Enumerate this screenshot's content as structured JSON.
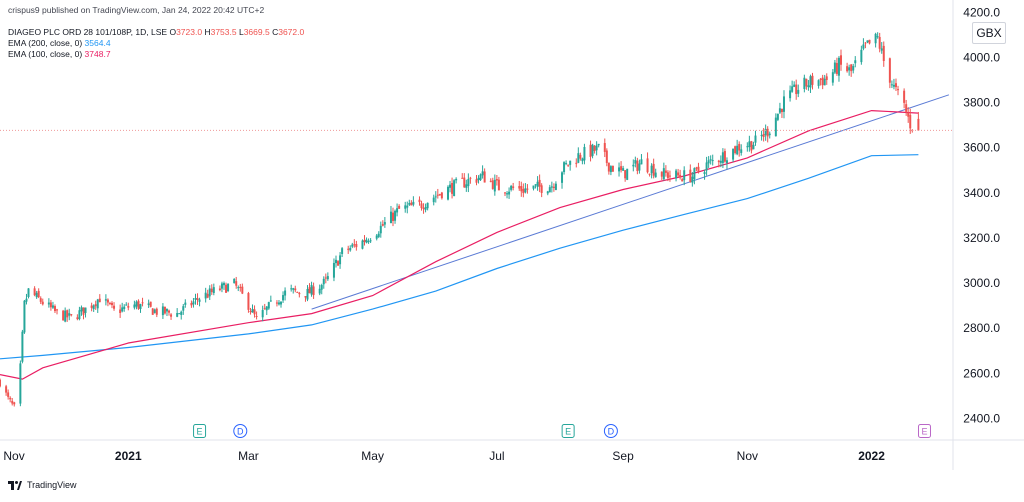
{
  "header": {
    "published": "crispus9 published on TradingView.com, Jan 24, 2022 20:42 UTC+2",
    "symbol": "DIAGEO PLC ORD 28 101/108P, 1D, LSE",
    "open_label": "O",
    "open": "3723.0",
    "high_label": "H",
    "high": "3753.5",
    "low_label": "L",
    "low": "3669.5",
    "close_label": "C",
    "close": "3672.0",
    "ema200_label": "EMA (200, close, 0)",
    "ema200_value": "3564.4",
    "ema100_label": "EMA (100, close, 0)",
    "ema100_value": "3748.7"
  },
  "currency": "GBX",
  "footer": {
    "brand": "TradingView"
  },
  "colors": {
    "up": "#26a69a",
    "down": "#ef5350",
    "ema200": "#2196f3",
    "ema100": "#e91e63",
    "trendline": "#5b7bd5",
    "last_price_line": "#ef9a9a"
  },
  "chart_data": {
    "type": "candlestick",
    "ylim": [
      2300,
      4250
    ],
    "y_ticks": [
      "2400.0",
      "2600.0",
      "2800.0",
      "3000.0",
      "3200.0",
      "3400.0",
      "3600.0",
      "3800.0",
      "4000.0",
      "4200.0"
    ],
    "x_ticks": [
      {
        "label": "Nov",
        "date": "2020-11-01"
      },
      {
        "label": "2021",
        "date": "2021-01-01",
        "bold": true
      },
      {
        "label": "Mar",
        "date": "2021-03-01"
      },
      {
        "label": "May",
        "date": "2021-05-01"
      },
      {
        "label": "Jul",
        "date": "2021-07-01"
      },
      {
        "label": "Sep",
        "date": "2021-09-01"
      },
      {
        "label": "Nov",
        "date": "2021-11-01"
      },
      {
        "label": "2022",
        "date": "2022-01-01",
        "bold": true
      }
    ],
    "xlim": [
      "2020-10-30",
      "2022-02-10"
    ],
    "price_anchors": [
      [
        "2020-10-30",
        2560
      ],
      [
        "2020-11-03",
        2480
      ],
      [
        "2020-11-06",
        2440
      ],
      [
        "2020-11-09",
        2620
      ],
      [
        "2020-11-11",
        2900
      ],
      [
        "2020-11-13",
        2960
      ],
      [
        "2020-11-20",
        2910
      ],
      [
        "2020-11-27",
        2860
      ],
      [
        "2020-12-04",
        2840
      ],
      [
        "2020-12-11",
        2880
      ],
      [
        "2020-12-18",
        2930
      ],
      [
        "2020-12-25",
        2870
      ],
      [
        "2021-01-05",
        2900
      ],
      [
        "2021-01-15",
        2870
      ],
      [
        "2021-01-25",
        2860
      ],
      [
        "2021-02-05",
        2930
      ],
      [
        "2021-02-15",
        2970
      ],
      [
        "2021-02-22",
        2990
      ],
      [
        "2021-03-01",
        2900
      ],
      [
        "2021-03-05",
        2830
      ],
      [
        "2021-03-10",
        2880
      ],
      [
        "2021-03-20",
        2960
      ],
      [
        "2021-03-30",
        2950
      ],
      [
        "2021-04-08",
        3000
      ],
      [
        "2021-04-16",
        3130
      ],
      [
        "2021-04-26",
        3180
      ],
      [
        "2021-05-06",
        3250
      ],
      [
        "2021-05-14",
        3320
      ],
      [
        "2021-05-24",
        3340
      ],
      [
        "2021-06-04",
        3400
      ],
      [
        "2021-06-14",
        3440
      ],
      [
        "2021-06-24",
        3470
      ],
      [
        "2021-07-02",
        3420
      ],
      [
        "2021-07-14",
        3410
      ],
      [
        "2021-07-22",
        3420
      ],
      [
        "2021-07-28",
        3430
      ],
      [
        "2021-08-02",
        3500
      ],
      [
        "2021-08-10",
        3560
      ],
      [
        "2021-08-20",
        3590
      ],
      [
        "2021-08-25",
        3520
      ],
      [
        "2021-09-01",
        3480
      ],
      [
        "2021-09-10",
        3530
      ],
      [
        "2021-09-20",
        3480
      ],
      [
        "2021-09-28",
        3470
      ],
      [
        "2021-10-05",
        3470
      ],
      [
        "2021-10-12",
        3520
      ],
      [
        "2021-10-20",
        3560
      ],
      [
        "2021-10-28",
        3600
      ],
      [
        "2021-11-05",
        3620
      ],
      [
        "2021-11-12",
        3680
      ],
      [
        "2021-11-19",
        3800
      ],
      [
        "2021-11-26",
        3860
      ],
      [
        "2021-12-03",
        3890
      ],
      [
        "2021-12-10",
        3900
      ],
      [
        "2021-12-16",
        3960
      ],
      [
        "2021-12-22",
        3930
      ],
      [
        "2021-12-29",
        4040
      ],
      [
        "2022-01-04",
        4080
      ],
      [
        "2022-01-07",
        3980
      ],
      [
        "2022-01-12",
        3860
      ],
      [
        "2022-01-17",
        3780
      ],
      [
        "2022-01-20",
        3700
      ],
      [
        "2022-01-24",
        3672
      ]
    ],
    "series": [
      {
        "name": "EMA (200, close, 0)",
        "type": "line",
        "points": [
          [
            "2020-10-30",
            2660
          ],
          [
            "2020-11-20",
            2675
          ],
          [
            "2021-01-01",
            2710
          ],
          [
            "2021-03-01",
            2770
          ],
          [
            "2021-04-01",
            2810
          ],
          [
            "2021-05-01",
            2880
          ],
          [
            "2021-06-01",
            2960
          ],
          [
            "2021-07-01",
            3060
          ],
          [
            "2021-08-01",
            3150
          ],
          [
            "2021-09-01",
            3230
          ],
          [
            "2021-10-01",
            3300
          ],
          [
            "2021-11-01",
            3370
          ],
          [
            "2021-12-01",
            3460
          ],
          [
            "2022-01-01",
            3560
          ],
          [
            "2022-01-24",
            3564.4
          ]
        ]
      },
      {
        "name": "EMA (100, close, 0)",
        "type": "line",
        "points": [
          [
            "2020-10-30",
            2590
          ],
          [
            "2020-11-10",
            2570
          ],
          [
            "2020-11-20",
            2620
          ],
          [
            "2021-01-01",
            2730
          ],
          [
            "2021-03-01",
            2820
          ],
          [
            "2021-04-01",
            2860
          ],
          [
            "2021-05-01",
            2940
          ],
          [
            "2021-06-01",
            3090
          ],
          [
            "2021-07-01",
            3220
          ],
          [
            "2021-08-01",
            3330
          ],
          [
            "2021-09-01",
            3410
          ],
          [
            "2021-10-01",
            3470
          ],
          [
            "2021-11-01",
            3550
          ],
          [
            "2021-12-01",
            3670
          ],
          [
            "2022-01-01",
            3760
          ],
          [
            "2022-01-24",
            3748.7
          ]
        ]
      },
      {
        "name": "",
        "type": "trendline",
        "points": [
          [
            "2021-04-01",
            2880
          ],
          [
            "2022-02-08",
            3830
          ]
        ]
      }
    ],
    "last_price": 3672.0,
    "event_markers": [
      {
        "label": "E",
        "date": "2021-02-05",
        "kind": "earnings"
      },
      {
        "label": "D",
        "date": "2021-02-25",
        "kind": "dividend"
      },
      {
        "label": "E",
        "date": "2021-08-05",
        "kind": "earnings"
      },
      {
        "label": "D",
        "date": "2021-08-26",
        "kind": "dividend"
      },
      {
        "label": "E",
        "date": "2022-01-27",
        "kind": "earnings-upcoming"
      }
    ]
  }
}
